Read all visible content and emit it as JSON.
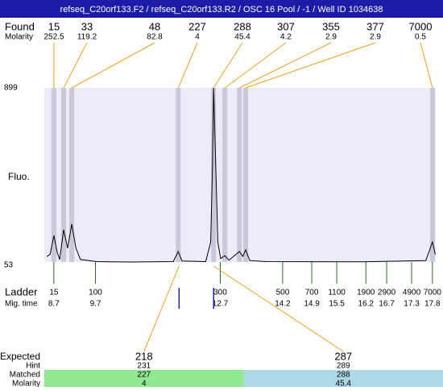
{
  "header": {
    "title": "refseq_C20orf133.F2 / refseq_C20orf133.R2 / OSC 16 Pool / -1 / Well ID 1034638"
  },
  "chart_data": {
    "type": "line",
    "y_label": "Fluo.",
    "color": "#000000",
    "plot_color": "#ececf8",
    "x": [
      8.53,
      8.61,
      8.7,
      8.78,
      8.84,
      8.935,
      9.03,
      9.13,
      9.23,
      9.34,
      9.73,
      10.5,
      11.57,
      11.69,
      11.78,
      12.35,
      12.47,
      12.51,
      12.54,
      12.58,
      12.64,
      12.71,
      12.81,
      12.91,
      13.16,
      13.24,
      13.31,
      13.41,
      13.8,
      16.12,
      17.64,
      17.73,
      17.8,
      17.87
    ],
    "values": [
      80,
      90,
      182,
      100,
      65,
      210,
      120,
      237,
      120,
      65,
      55,
      53,
      55,
      104,
      58,
      55,
      150,
      500,
      899,
      600,
      150,
      70,
      84,
      62,
      104,
      80,
      112,
      60,
      55,
      54,
      60,
      110,
      151,
      90
    ],
    "xlim": [
      8.47,
      17.88
    ],
    "ylim": [
      53,
      899
    ],
    "yticks": [
      53,
      899
    ],
    "found": {
      "label": "Found",
      "sub_label": "Molarity",
      "band_color": "#c8c8d8",
      "line_color": "#f0a020",
      "sizes": [
        15,
        33,
        48,
        227,
        288,
        307,
        355,
        377,
        7000
      ],
      "molarity": [
        252.5,
        119.2,
        82.8,
        4,
        45.4,
        4.2,
        2.9,
        2.9,
        0.5
      ],
      "x": [
        8.7,
        8.935,
        9.13,
        11.69,
        12.54,
        12.81,
        13.16,
        13.31,
        17.8
      ]
    },
    "ladder": {
      "label": "Ladder",
      "sub_label": "Mig. time",
      "color": "#207020",
      "sizes": [
        15,
        100,
        300,
        500,
        700,
        1100,
        1900,
        2900,
        4900,
        7000
      ],
      "x": [
        8.7,
        9.7,
        12.7,
        14.2,
        14.9,
        15.5,
        16.2,
        16.7,
        17.3,
        17.8
      ]
    },
    "expected": {
      "label": "Expected",
      "hint_label": "Hint",
      "matched_label": "Matched",
      "molarity_label": "Molarity",
      "marker_color": "#2020a0",
      "colors": [
        "#90e890",
        "#add8e6"
      ],
      "sizes": [
        218,
        287
      ],
      "hint": [
        231,
        289
      ],
      "matched": [
        227,
        288
      ],
      "molarity": [
        4,
        45.4
      ],
      "x": [
        11.71,
        12.54
      ]
    }
  }
}
